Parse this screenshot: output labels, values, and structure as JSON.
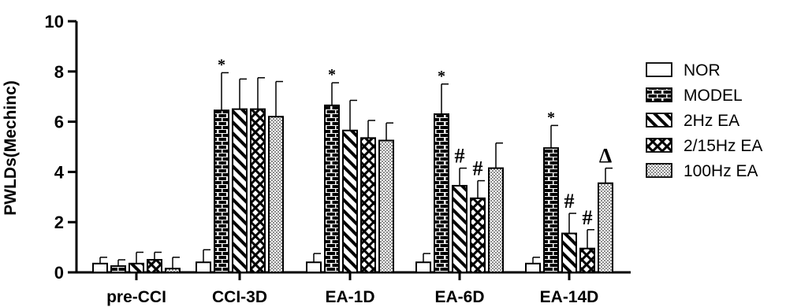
{
  "chart_data": {
    "type": "bar",
    "ylabel": "PWLDs(Mechinc)",
    "xlabel": "",
    "ylim": [
      0,
      10
    ],
    "yticks": [
      "0",
      "2",
      "4",
      "6",
      "8",
      "10"
    ],
    "categories": [
      "pre-CCI",
      "CCI-3D",
      "EA-1D",
      "EA-6D",
      "EA-14D"
    ],
    "legend_position": "right",
    "series": [
      {
        "name": "NOR",
        "pattern": "empty",
        "values": [
          0.35,
          0.4,
          0.4,
          0.4,
          0.35
        ],
        "errors": [
          0.25,
          0.5,
          0.35,
          0.35,
          0.25
        ]
      },
      {
        "name": "MODEL",
        "pattern": "brick",
        "values": [
          0.25,
          6.45,
          6.65,
          6.3,
          4.95
        ],
        "errors": [
          0.25,
          1.5,
          0.9,
          1.2,
          0.9
        ]
      },
      {
        "name": "2Hz EA",
        "pattern": "diagonal",
        "values": [
          0.35,
          6.5,
          5.65,
          3.45,
          1.55
        ],
        "errors": [
          0.45,
          1.2,
          1.2,
          0.7,
          0.8
        ]
      },
      {
        "name": "2/15Hz EA",
        "pattern": "cross",
        "values": [
          0.5,
          6.5,
          5.35,
          2.95,
          0.95
        ],
        "errors": [
          0.3,
          1.25,
          0.7,
          0.7,
          0.75
        ]
      },
      {
        "name": "100Hz EA",
        "pattern": "dots",
        "values": [
          0.15,
          6.2,
          5.25,
          4.15,
          3.55
        ],
        "errors": [
          0.45,
          1.4,
          0.7,
          1.0,
          0.6
        ]
      }
    ],
    "annotations": [
      {
        "category": 1,
        "series": 1,
        "text": "*"
      },
      {
        "category": 2,
        "series": 1,
        "text": "*"
      },
      {
        "category": 3,
        "series": 1,
        "text": "*"
      },
      {
        "category": 4,
        "series": 1,
        "text": "*"
      },
      {
        "category": 3,
        "series": 2,
        "text": "#"
      },
      {
        "category": 3,
        "series": 3,
        "text": "#"
      },
      {
        "category": 4,
        "series": 2,
        "text": "#"
      },
      {
        "category": 4,
        "series": 3,
        "text": "#"
      },
      {
        "category": 4,
        "series": 4,
        "text": "Δ"
      }
    ]
  }
}
